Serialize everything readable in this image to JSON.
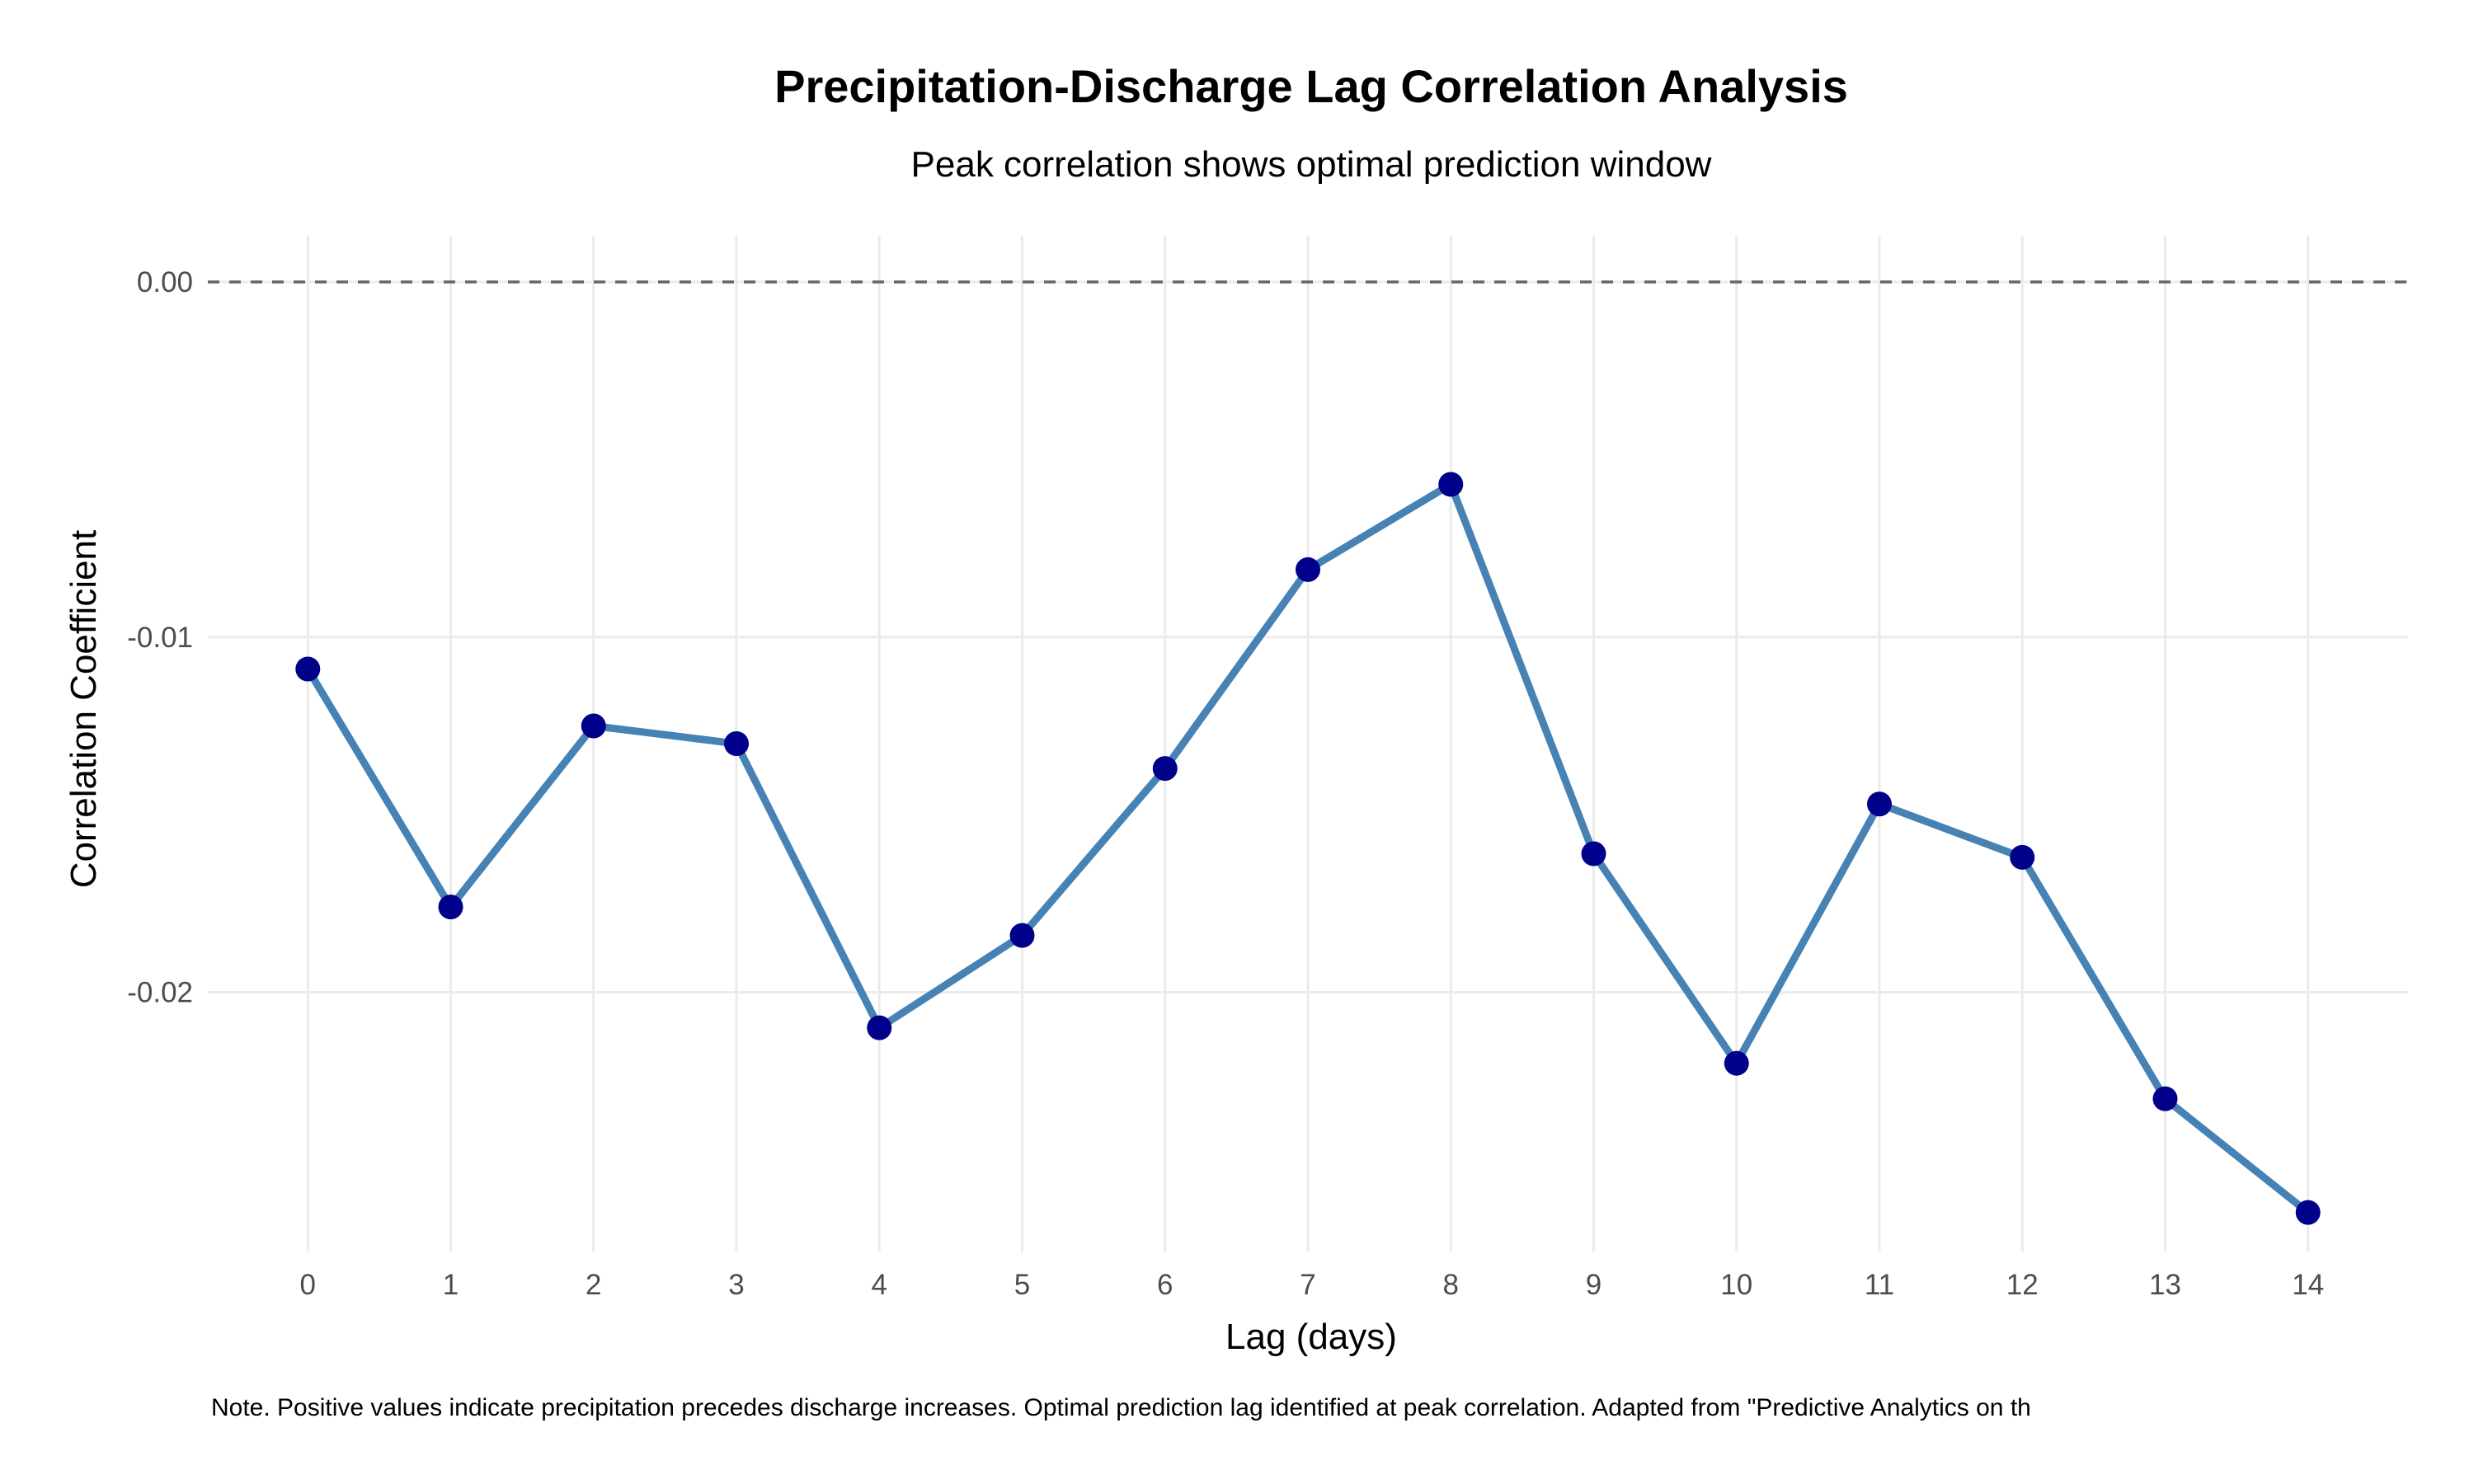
{
  "chart_data": {
    "type": "line",
    "title": "Precipitation-Discharge Lag Correlation Analysis",
    "subtitle": "Peak correlation shows optimal prediction window",
    "xlabel": "Lag (days)",
    "ylabel": "Correlation Coefficient",
    "caption": "Note. Positive values indicate precipitation precedes discharge increases. Optimal prediction lag identified at peak correlation. Adapted from \"Predictive Analytics on th",
    "x": [
      0,
      1,
      2,
      3,
      4,
      5,
      6,
      7,
      8,
      9,
      10,
      11,
      12,
      13,
      14
    ],
    "x_tick_labels": [
      "0",
      "1",
      "2",
      "3",
      "4",
      "5",
      "6",
      "7",
      "8",
      "9",
      "10",
      "11",
      "12",
      "13",
      "14"
    ],
    "series": [
      {
        "values": [
          -0.0109,
          -0.0176,
          -0.0125,
          -0.013,
          -0.021,
          -0.0184,
          -0.0137,
          -0.0081,
          -0.0057,
          -0.0161,
          -0.022,
          -0.0147,
          -0.0162,
          -0.023,
          -0.0262
        ]
      }
    ],
    "y_ticks": [
      0,
      -0.01,
      -0.02
    ],
    "y_tick_labels": [
      "0.00",
      "-0.01",
      "-0.02"
    ],
    "xlim": [
      -0.7,
      14.7
    ],
    "ylim": [
      -0.0273,
      0.0013
    ],
    "reference_line": {
      "y": 0,
      "style": "dashed",
      "color": "#666666"
    },
    "grid": true,
    "legend": "none",
    "colors": {
      "line": "#4682b4",
      "points": "#00008b",
      "grid": "#ebebeb"
    }
  }
}
